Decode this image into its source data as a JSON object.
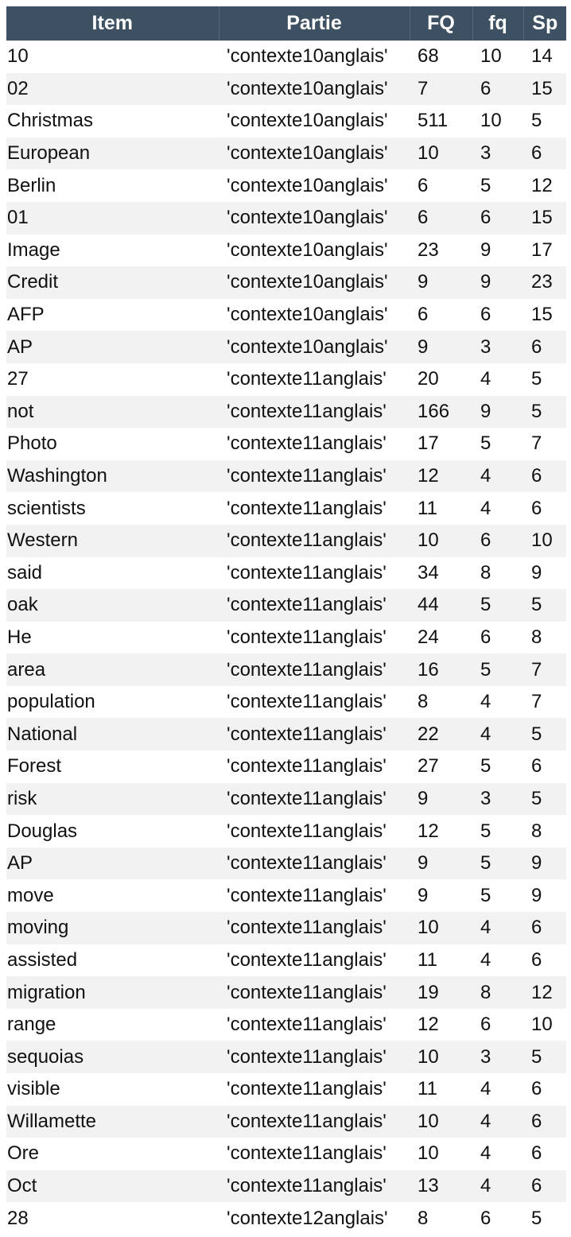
{
  "table": {
    "headers": [
      "Item",
      "Partie",
      "FQ",
      "fq",
      "Sp"
    ],
    "rows": [
      [
        "10",
        "'contexte10anglais'",
        "68",
        "10",
        "14"
      ],
      [
        "02",
        "'contexte10anglais'",
        "7",
        "6",
        "15"
      ],
      [
        "Christmas",
        "'contexte10anglais'",
        "511",
        "10",
        "5"
      ],
      [
        "European",
        "'contexte10anglais'",
        "10",
        "3",
        "6"
      ],
      [
        "Berlin",
        "'contexte10anglais'",
        "6",
        "5",
        "12"
      ],
      [
        "01",
        "'contexte10anglais'",
        "6",
        "6",
        "15"
      ],
      [
        "Image",
        "'contexte10anglais'",
        "23",
        "9",
        "17"
      ],
      [
        "Credit",
        "'contexte10anglais'",
        "9",
        "9",
        "23"
      ],
      [
        "AFP",
        "'contexte10anglais'",
        "6",
        "6",
        "15"
      ],
      [
        "AP",
        "'contexte10anglais'",
        "9",
        "3",
        "6"
      ],
      [
        "27",
        "'contexte11anglais'",
        "20",
        "4",
        "5"
      ],
      [
        "not",
        "'contexte11anglais'",
        "166",
        "9",
        "5"
      ],
      [
        "Photo",
        "'contexte11anglais'",
        "17",
        "5",
        "7"
      ],
      [
        "Washington",
        "'contexte11anglais'",
        "12",
        "4",
        "6"
      ],
      [
        "scientists",
        "'contexte11anglais'",
        "11",
        "4",
        "6"
      ],
      [
        "Western",
        "'contexte11anglais'",
        "10",
        "6",
        "10"
      ],
      [
        "said",
        "'contexte11anglais'",
        "34",
        "8",
        "9"
      ],
      [
        "oak",
        "'contexte11anglais'",
        "44",
        "5",
        "5"
      ],
      [
        "He",
        "'contexte11anglais'",
        "24",
        "6",
        "8"
      ],
      [
        "area",
        "'contexte11anglais'",
        "16",
        "5",
        "7"
      ],
      [
        "population",
        "'contexte11anglais'",
        "8",
        "4",
        "7"
      ],
      [
        "National",
        "'contexte11anglais'",
        "22",
        "4",
        "5"
      ],
      [
        "Forest",
        "'contexte11anglais'",
        "27",
        "5",
        "6"
      ],
      [
        "risk",
        "'contexte11anglais'",
        "9",
        "3",
        "5"
      ],
      [
        "Douglas",
        "'contexte11anglais'",
        "12",
        "5",
        "8"
      ],
      [
        "AP",
        "'contexte11anglais'",
        "9",
        "5",
        "9"
      ],
      [
        "move",
        "'contexte11anglais'",
        "9",
        "5",
        "9"
      ],
      [
        "moving",
        "'contexte11anglais'",
        "10",
        "4",
        "6"
      ],
      [
        "assisted",
        "'contexte11anglais'",
        "11",
        "4",
        "6"
      ],
      [
        "migration",
        "'contexte11anglais'",
        "19",
        "8",
        "12"
      ],
      [
        "range",
        "'contexte11anglais'",
        "12",
        "6",
        "10"
      ],
      [
        "sequoias",
        "'contexte11anglais'",
        "10",
        "3",
        "5"
      ],
      [
        "visible",
        "'contexte11anglais'",
        "11",
        "4",
        "6"
      ],
      [
        "Willamette",
        "'contexte11anglais'",
        "10",
        "4",
        "6"
      ],
      [
        "Ore",
        "'contexte11anglais'",
        "10",
        "4",
        "6"
      ],
      [
        "Oct",
        "'contexte11anglais'",
        "13",
        "4",
        "6"
      ],
      [
        "28",
        "'contexte12anglais'",
        "8",
        "6",
        "5"
      ]
    ]
  }
}
